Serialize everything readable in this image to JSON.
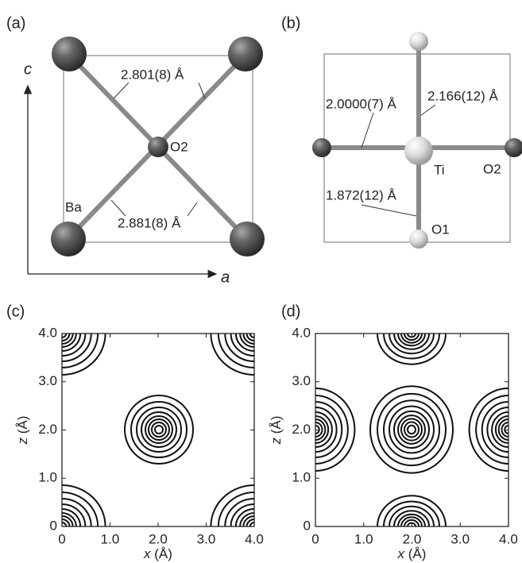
{
  "panels": {
    "a": {
      "label": "(a)",
      "axis_c": "c",
      "axis_a": "a",
      "atom_ba": "Ba",
      "atom_o2": "O2",
      "bond_upper": "2.801(8) Å",
      "bond_lower": "2.881(8) Å"
    },
    "b": {
      "label": "(b)",
      "bond_left": "2.0000(7) Å",
      "bond_up": "2.166(12) Å",
      "bond_down": "1.872(12) Å",
      "atom_ti": "Ti",
      "atom_o2": "O2",
      "atom_o1": "O1"
    },
    "c": {
      "label": "(c)"
    },
    "d": {
      "label": "(d)"
    }
  },
  "plots": [
    {
      "xlabel": {
        "var": "x",
        "unit": " (Å)"
      },
      "ylabel": {
        "var": "z",
        "unit": " (Å)"
      },
      "xlim": [
        0,
        4
      ],
      "ylim": [
        0,
        4
      ],
      "xticks": [
        0,
        {
          "value": 1,
          "label": "1.0"
        },
        {
          "value": 2,
          "label": "2.0"
        },
        {
          "value": 3,
          "label": "3.0"
        },
        {
          "value": 4,
          "label": "4.0"
        }
      ],
      "yticks": [
        0,
        {
          "value": 1,
          "label": "1.0"
        },
        {
          "value": 2,
          "label": "2.0"
        },
        {
          "value": 3,
          "label": "3.0"
        },
        {
          "value": 4,
          "label": "4.0"
        }
      ]
    },
    {
      "xlabel": {
        "var": "x",
        "unit": " (Å)"
      },
      "ylabel": {
        "var": "z",
        "unit": " (Å)"
      },
      "xlim": [
        0,
        4
      ],
      "ylim": [
        0,
        4
      ],
      "xticks": [
        0,
        {
          "value": 1,
          "label": "1.0"
        },
        {
          "value": 2,
          "label": "2.0"
        },
        {
          "value": 3,
          "label": "3.0"
        },
        {
          "value": 4,
          "label": "4.0"
        }
      ],
      "yticks": [
        0,
        {
          "value": 1,
          "label": "1.0"
        },
        {
          "value": 2,
          "label": "2.0"
        },
        {
          "value": 3,
          "label": "3.0"
        },
        {
          "value": 4,
          "label": "4.0"
        }
      ]
    }
  ]
}
